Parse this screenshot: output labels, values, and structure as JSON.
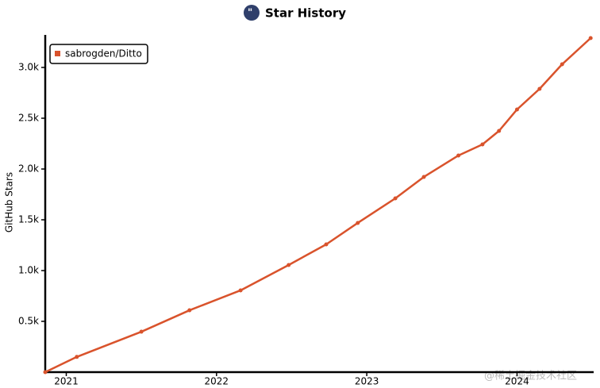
{
  "chart_data": {
    "type": "line",
    "title": "Star History",
    "y_label": "GitHub Stars",
    "watermark": "@稀土掘金技术社区",
    "xlim": [
      2020.86,
      2024.51
    ],
    "xticks": [
      2021,
      2022,
      2023,
      2024
    ],
    "ylim": [
      0,
      3300
    ],
    "yticks": [
      {
        "value": 500,
        "label": "0.5k"
      },
      {
        "value": 1000,
        "label": "1.0k"
      },
      {
        "value": 1500,
        "label": "1.5k"
      },
      {
        "value": 2000,
        "label": "2.0k"
      },
      {
        "value": 2500,
        "label": "2.5k"
      },
      {
        "value": 3000,
        "label": "3.0k"
      }
    ],
    "x": [
      2020.86,
      2021.07,
      2021.5,
      2021.82,
      2022.16,
      2022.48,
      2022.73,
      2022.94,
      2023.19,
      2023.38,
      2023.61,
      2023.77,
      2023.88,
      2024.0,
      2024.15,
      2024.3,
      2024.49
    ],
    "series": [
      {
        "name": "sabrogden/Ditto",
        "color": "#d9532c",
        "values": [
          0,
          150,
          398,
          609,
          805,
          1055,
          1258,
          1469,
          1711,
          1922,
          2133,
          2242,
          2375,
          2586,
          2789,
          3031,
          3289
        ]
      }
    ],
    "legend": "top-left"
  }
}
